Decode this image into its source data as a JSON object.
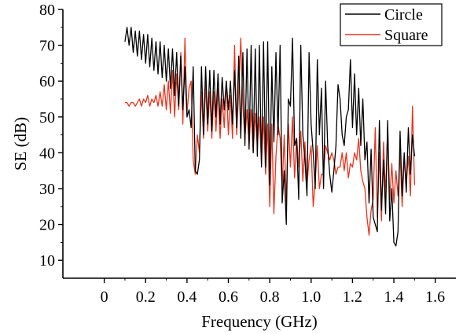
{
  "chart_data": {
    "type": "line",
    "title": "",
    "xlabel": "Frequency (GHz)",
    "ylabel": "SE (dB)",
    "xlim": [
      -0.2,
      1.7
    ],
    "ylim": [
      5,
      80
    ],
    "xticks": [
      0,
      0.2,
      0.4,
      0.6,
      0.8,
      1.0,
      1.2,
      1.4,
      1.6
    ],
    "xtick_labels": [
      "0",
      "0.2",
      "0.4",
      "0.6",
      "0.8",
      "1.0",
      "1.2",
      "1.4",
      "1.6"
    ],
    "yticks": [
      10,
      20,
      30,
      40,
      50,
      60,
      70,
      80
    ],
    "ytick_labels": [
      "10",
      "20",
      "30",
      "40",
      "50",
      "60",
      "70",
      "80"
    ],
    "grid": false,
    "legend": "top-right",
    "series": [
      {
        "name": "Circle",
        "color": "#000000",
        "x": [
          0.1,
          0.11,
          0.12,
          0.13,
          0.14,
          0.15,
          0.16,
          0.17,
          0.18,
          0.19,
          0.2,
          0.21,
          0.22,
          0.23,
          0.24,
          0.25,
          0.26,
          0.27,
          0.28,
          0.29,
          0.3,
          0.31,
          0.32,
          0.33,
          0.34,
          0.35,
          0.36,
          0.37,
          0.38,
          0.39,
          0.4,
          0.41,
          0.42,
          0.43,
          0.44,
          0.45,
          0.46,
          0.47,
          0.48,
          0.49,
          0.5,
          0.51,
          0.52,
          0.53,
          0.54,
          0.55,
          0.56,
          0.57,
          0.58,
          0.59,
          0.6,
          0.61,
          0.62,
          0.63,
          0.64,
          0.65,
          0.66,
          0.67,
          0.68,
          0.69,
          0.7,
          0.71,
          0.72,
          0.73,
          0.74,
          0.75,
          0.76,
          0.77,
          0.78,
          0.79,
          0.8,
          0.81,
          0.82,
          0.83,
          0.84,
          0.85,
          0.86,
          0.87,
          0.88,
          0.89,
          0.9,
          0.91,
          0.92,
          0.93,
          0.94,
          0.95,
          0.96,
          0.97,
          0.98,
          0.99,
          1.0,
          1.01,
          1.02,
          1.03,
          1.04,
          1.05,
          1.06,
          1.07,
          1.08,
          1.09,
          1.1,
          1.11,
          1.12,
          1.13,
          1.14,
          1.15,
          1.16,
          1.17,
          1.18,
          1.19,
          1.2,
          1.21,
          1.22,
          1.23,
          1.24,
          1.25,
          1.26,
          1.27,
          1.28,
          1.29,
          1.3,
          1.31,
          1.32,
          1.33,
          1.34,
          1.35,
          1.36,
          1.37,
          1.38,
          1.39,
          1.4,
          1.41,
          1.42,
          1.43,
          1.44,
          1.45,
          1.46,
          1.47,
          1.48,
          1.49,
          1.5
        ],
        "y": [
          71,
          75,
          70,
          75,
          68,
          74,
          67,
          74,
          66,
          73,
          65,
          73,
          64,
          72,
          63,
          71,
          62,
          71,
          61,
          70,
          60,
          69,
          58,
          69,
          56,
          68,
          53,
          67,
          52,
          64,
          50,
          52,
          47,
          64,
          35,
          34,
          38,
          64,
          45,
          64,
          48,
          63,
          46,
          63,
          50,
          62,
          48,
          61,
          52,
          60,
          52,
          60,
          48,
          63,
          47,
          67,
          44,
          68,
          42,
          69,
          41,
          70,
          40,
          69,
          39,
          70,
          36,
          71,
          36,
          71,
          31,
          64,
          43,
          68,
          45,
          70,
          26,
          35,
          20,
          55,
          53,
          72,
          42,
          44,
          27,
          70,
          45,
          38,
          28,
          68,
          48,
          40,
          30,
          66,
          45,
          58,
          30,
          60,
          42,
          34,
          29,
          35,
          42,
          59,
          55,
          45,
          42,
          50,
          52,
          66,
          47,
          62,
          45,
          58,
          42,
          55,
          38,
          43,
          26,
          41,
          22,
          20,
          18,
          49,
          24,
          38,
          23,
          49,
          21,
          30,
          15,
          14,
          18,
          46,
          28,
          40,
          29,
          47,
          34,
          45,
          39
        ]
      },
      {
        "name": "Square",
        "color": "#e8341e",
        "x": [
          0.1,
          0.11,
          0.12,
          0.13,
          0.14,
          0.15,
          0.16,
          0.17,
          0.18,
          0.19,
          0.2,
          0.21,
          0.22,
          0.23,
          0.24,
          0.25,
          0.26,
          0.27,
          0.28,
          0.29,
          0.3,
          0.31,
          0.32,
          0.33,
          0.34,
          0.35,
          0.36,
          0.37,
          0.38,
          0.39,
          0.4,
          0.41,
          0.42,
          0.43,
          0.44,
          0.45,
          0.46,
          0.47,
          0.48,
          0.49,
          0.5,
          0.51,
          0.52,
          0.53,
          0.54,
          0.55,
          0.56,
          0.57,
          0.58,
          0.59,
          0.6,
          0.61,
          0.62,
          0.63,
          0.64,
          0.65,
          0.66,
          0.67,
          0.68,
          0.69,
          0.7,
          0.71,
          0.72,
          0.73,
          0.74,
          0.75,
          0.76,
          0.77,
          0.78,
          0.79,
          0.8,
          0.81,
          0.82,
          0.83,
          0.84,
          0.85,
          0.86,
          0.87,
          0.88,
          0.89,
          0.9,
          0.91,
          0.92,
          0.93,
          0.94,
          0.95,
          0.96,
          0.97,
          0.98,
          0.99,
          1.0,
          1.01,
          1.02,
          1.03,
          1.04,
          1.05,
          1.06,
          1.07,
          1.08,
          1.09,
          1.1,
          1.11,
          1.12,
          1.13,
          1.14,
          1.15,
          1.16,
          1.17,
          1.18,
          1.19,
          1.2,
          1.21,
          1.22,
          1.23,
          1.24,
          1.25,
          1.26,
          1.27,
          1.28,
          1.29,
          1.3,
          1.31,
          1.32,
          1.33,
          1.34,
          1.35,
          1.36,
          1.37,
          1.38,
          1.39,
          1.4,
          1.41,
          1.42,
          1.43,
          1.44,
          1.45,
          1.46,
          1.47,
          1.48,
          1.49,
          1.5
        ],
        "y": [
          54,
          54,
          53,
          54,
          54,
          53,
          54,
          55,
          53,
          55,
          54,
          56,
          53,
          55,
          54,
          56,
          53,
          57,
          53,
          59,
          52,
          60,
          51,
          63,
          50,
          62,
          52,
          68,
          48,
          72,
          51,
          58,
          60,
          38,
          34,
          45,
          40,
          57,
          44,
          59,
          46,
          57,
          44,
          57,
          46,
          58,
          44,
          55,
          47,
          60,
          45,
          56,
          44,
          70,
          45,
          57,
          72,
          53,
          44,
          52,
          42,
          52,
          40,
          51,
          42,
          50,
          37,
          50,
          34,
          48,
          25,
          48,
          23,
          39,
          48,
          44,
          30,
          45,
          26,
          48,
          36,
          50,
          33,
          44,
          36,
          46,
          32,
          43,
          31,
          38,
          42,
          25,
          32,
          42,
          30,
          34,
          34,
          42,
          40,
          38,
          40,
          38,
          34,
          36,
          36,
          40,
          35,
          40,
          33,
          37,
          36,
          40,
          38,
          44,
          35,
          32,
          30,
          22,
          17,
          24,
          27,
          47,
          22,
          40,
          21,
          43,
          28,
          47,
          27,
          37,
          26,
          35,
          28,
          40,
          25,
          38,
          32,
          39,
          28,
          53,
          31
        ]
      }
    ]
  }
}
